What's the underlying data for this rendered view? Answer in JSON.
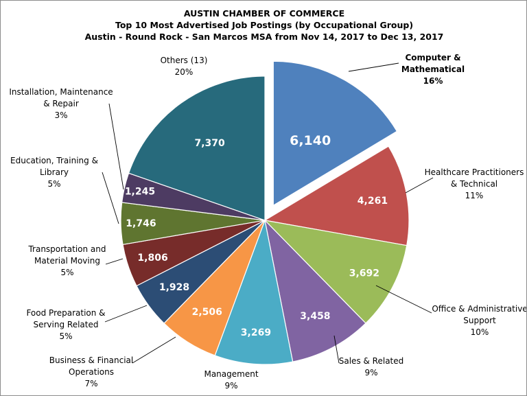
{
  "chart_data": {
    "type": "pie",
    "title": [
      "AUSTIN CHAMBER OF COMMERCE",
      "Top 10 Most Advertised Job Postings (by Occupational Group)",
      "Austin - Round Rock - San Marcos MSA from Nov 14, 2017  to Dec 13, 2017"
    ],
    "slices": [
      {
        "label_lines": [
          "Computer &",
          "Mathematical"
        ],
        "value": 6140,
        "value_text": "6,140",
        "percent": "16%",
        "color": "#4f81bd",
        "exploded": true,
        "bold_label": true
      },
      {
        "label_lines": [
          "Healthcare Practitioners",
          "& Technical"
        ],
        "value": 4261,
        "value_text": "4,261",
        "percent": "11%",
        "color": "#c0504d"
      },
      {
        "label_lines": [
          "Office & Administrative",
          "Support"
        ],
        "value": 3692,
        "value_text": "3,692",
        "percent": "10%",
        "color": "#9bbb59"
      },
      {
        "label_lines": [
          "Sales & Related"
        ],
        "value": 3458,
        "value_text": "3,458",
        "percent": "9%",
        "color": "#8064a2"
      },
      {
        "label_lines": [
          "Management"
        ],
        "value": 3269,
        "value_text": "3,269",
        "percent": "9%",
        "color": "#4bacc6"
      },
      {
        "label_lines": [
          "Business & Financial",
          "Operations"
        ],
        "value": 2506,
        "value_text": "2,506",
        "percent": "7%",
        "color": "#f79646"
      },
      {
        "label_lines": [
          "Food Preparation &",
          "Serving Related"
        ],
        "value": 1928,
        "value_text": "1,928",
        "percent": "5%",
        "color": "#2c4d75"
      },
      {
        "label_lines": [
          "Transportation and",
          "Material Moving"
        ],
        "value": 1806,
        "value_text": "1,806",
        "percent": "5%",
        "color": "#772c2a"
      },
      {
        "label_lines": [
          "Education, Training &",
          "Library"
        ],
        "value": 1746,
        "value_text": "1,746",
        "percent": "5%",
        "color": "#5f7530"
      },
      {
        "label_lines": [
          "Installation, Maintenance",
          "& Repair"
        ],
        "value": 1245,
        "value_text": "1,245",
        "percent": "3%",
        "color": "#4d3b62"
      },
      {
        "label_lines": [
          "Others (13)"
        ],
        "value": 7370,
        "value_text": "7,370",
        "percent": "20%",
        "color": "#276a7c"
      }
    ]
  }
}
